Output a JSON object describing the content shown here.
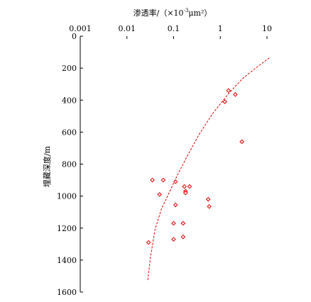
{
  "chart_data": {
    "type": "scatter",
    "xlabel_main": "渗透率/（×10",
    "xlabel_sup": "-3",
    "xlabel_unit": "μm²）",
    "ylabel": "埋藏深度/m",
    "x_scale": "log",
    "xlim": [
      0.001,
      10
    ],
    "x_ticks": [
      0.001,
      0.01,
      0.1,
      1,
      10
    ],
    "x_tick_labels": [
      "0.001",
      "0.01",
      "0.1",
      "1",
      "10"
    ],
    "x_axis_position": "top",
    "ylim": [
      0,
      1600
    ],
    "y_inverted": true,
    "y_ticks": [
      0,
      200,
      400,
      600,
      800,
      1000,
      1200,
      1400,
      1600
    ],
    "y_tick_labels": [
      "0",
      "200",
      "400",
      "600",
      "800",
      "1000",
      "1200",
      "1400",
      "1600"
    ],
    "grid": false,
    "marker": "diamond",
    "color": "#e00000",
    "points": [
      {
        "x": 1.5,
        "y": 340
      },
      {
        "x": 2.1,
        "y": 365
      },
      {
        "x": 1.25,
        "y": 410
      },
      {
        "x": 2.9,
        "y": 660
      },
      {
        "x": 0.035,
        "y": 900
      },
      {
        "x": 0.06,
        "y": 900
      },
      {
        "x": 0.11,
        "y": 910
      },
      {
        "x": 0.17,
        "y": 940
      },
      {
        "x": 0.22,
        "y": 940
      },
      {
        "x": 0.18,
        "y": 970
      },
      {
        "x": 0.18,
        "y": 980
      },
      {
        "x": 0.05,
        "y": 990
      },
      {
        "x": 0.55,
        "y": 1020
      },
      {
        "x": 0.11,
        "y": 1055
      },
      {
        "x": 0.58,
        "y": 1065
      },
      {
        "x": 0.1,
        "y": 1170
      },
      {
        "x": 0.16,
        "y": 1170
      },
      {
        "x": 0.16,
        "y": 1255
      },
      {
        "x": 0.1,
        "y": 1270
      },
      {
        "x": 0.029,
        "y": 1290
      }
    ],
    "trendline": {
      "style": "dashed",
      "color": "#e00000",
      "points": [
        {
          "x": 0.028,
          "y": 1525
        },
        {
          "x": 0.032,
          "y": 1380
        },
        {
          "x": 0.04,
          "y": 1210
        },
        {
          "x": 0.055,
          "y": 1080
        },
        {
          "x": 0.08,
          "y": 980
        },
        {
          "x": 0.12,
          "y": 870
        },
        {
          "x": 0.2,
          "y": 745
        },
        {
          "x": 0.35,
          "y": 615
        },
        {
          "x": 0.7,
          "y": 480
        },
        {
          "x": 1.5,
          "y": 360
        },
        {
          "x": 3,
          "y": 265
        },
        {
          "x": 6,
          "y": 195
        },
        {
          "x": 12,
          "y": 130
        }
      ]
    }
  }
}
